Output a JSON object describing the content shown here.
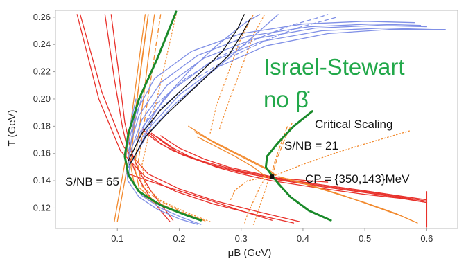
{
  "chart_data": {
    "type": "line",
    "xlabel": "μB (GeV)",
    "ylabel": "T (GeV)",
    "xlim": [
      0.0,
      0.65
    ],
    "ylim": [
      0.105,
      0.265
    ],
    "x_ticks": [
      "0.1",
      "0.2",
      "0.3",
      "0.4",
      "0.5",
      "0.6"
    ],
    "y_ticks": [
      "0.12",
      "0.14",
      "0.16",
      "0.18",
      "0.20",
      "0.22",
      "0.24",
      "0.26"
    ],
    "grid": false,
    "annotations": {
      "title_line1": "Israel-Stewart",
      "title_line2": "no β̇",
      "critical_scaling": "Critical Scaling",
      "sb_21": "S/NB = 21",
      "sb_65": "S/NB = 65",
      "cp": "CP = {350,143}MeV"
    },
    "critical_point": {
      "x": 0.35,
      "y": 0.143
    },
    "colors": {
      "red": "#e8302a",
      "orange": "#f28a2e",
      "blue": "#7f8fe6",
      "black": "#111111",
      "green": "#1a8a2a",
      "title": "#22a84a"
    },
    "series": [
      {
        "color": "red",
        "dash": "solid",
        "x": [
          0.04,
          0.075,
          0.11,
          0.15,
          0.2,
          0.26,
          0.33,
          0.395
        ],
        "y": [
          0.262,
          0.205,
          0.165,
          0.145,
          0.134,
          0.125,
          0.117,
          0.11
        ]
      },
      {
        "color": "red",
        "dash": "solid",
        "x": [
          0.035,
          0.07,
          0.105,
          0.145,
          0.195,
          0.255,
          0.325,
          0.385
        ],
        "y": [
          0.262,
          0.2,
          0.162,
          0.143,
          0.132,
          0.123,
          0.115,
          0.109
        ]
      },
      {
        "color": "red",
        "dash": "solid",
        "x": [
          0.08,
          0.095,
          0.108,
          0.118,
          0.13,
          0.15,
          0.17,
          0.185
        ],
        "y": [
          0.262,
          0.215,
          0.18,
          0.16,
          0.145,
          0.13,
          0.118,
          0.11
        ]
      },
      {
        "color": "red",
        "dash": "solid",
        "x": [
          0.09,
          0.102,
          0.112,
          0.122,
          0.135,
          0.155,
          0.175,
          0.19
        ],
        "y": [
          0.262,
          0.22,
          0.183,
          0.162,
          0.147,
          0.132,
          0.12,
          0.111
        ]
      },
      {
        "color": "red",
        "dash": "solid",
        "x": [
          0.155,
          0.175,
          0.2,
          0.25,
          0.3,
          0.35,
          0.42,
          0.5,
          0.56,
          0.6
        ],
        "y": [
          0.175,
          0.168,
          0.16,
          0.152,
          0.146,
          0.142,
          0.137,
          0.132,
          0.128,
          0.125
        ]
      },
      {
        "color": "red",
        "dash": "solid",
        "x": [
          0.14,
          0.16,
          0.19,
          0.24,
          0.29,
          0.345,
          0.415,
          0.495,
          0.555,
          0.6
        ],
        "y": [
          0.178,
          0.17,
          0.162,
          0.154,
          0.148,
          0.143,
          0.138,
          0.133,
          0.129,
          0.126
        ]
      },
      {
        "color": "red",
        "dash": "solid",
        "x": [
          0.165,
          0.19,
          0.22,
          0.26,
          0.3,
          0.35,
          0.42,
          0.5,
          0.56,
          0.6
        ],
        "y": [
          0.172,
          0.164,
          0.157,
          0.15,
          0.145,
          0.14,
          0.135,
          0.13,
          0.127,
          0.124
        ]
      },
      {
        "color": "red",
        "dash": "solid",
        "x": [
          0.15,
          0.17,
          0.205,
          0.255,
          0.305,
          0.355,
          0.425,
          0.505,
          0.565,
          0.6
        ],
        "y": [
          0.176,
          0.167,
          0.159,
          0.151,
          0.146,
          0.141,
          0.136,
          0.131,
          0.127,
          0.124
        ]
      },
      {
        "color": "red",
        "dash": "solid",
        "x": [
          0.6,
          0.6
        ],
        "y": [
          0.106,
          0.132
        ]
      },
      {
        "color": "red",
        "dash": "solid",
        "x": [
          0.17,
          0.2,
          0.24,
          0.28,
          0.32,
          0.36,
          0.41,
          0.44
        ],
        "y": [
          0.173,
          0.164,
          0.156,
          0.15,
          0.146,
          0.142,
          0.14,
          0.139
        ]
      },
      {
        "color": "red",
        "dash": "solid",
        "x": [
          0.118,
          0.15,
          0.19,
          0.24,
          0.3,
          0.35
        ],
        "y": [
          0.145,
          0.14,
          0.134,
          0.127,
          0.118,
          0.111
        ]
      },
      {
        "color": "orange",
        "dash": "solid",
        "x": [
          0.16,
          0.15,
          0.142,
          0.133,
          0.128,
          0.135,
          0.16,
          0.2,
          0.24
        ],
        "y": [
          0.262,
          0.23,
          0.2,
          0.17,
          0.15,
          0.135,
          0.125,
          0.117,
          0.111
        ]
      },
      {
        "color": "orange",
        "dash": "solid",
        "x": [
          0.15,
          0.14,
          0.132,
          0.125,
          0.122,
          0.128,
          0.15,
          0.19,
          0.23
        ],
        "y": [
          0.262,
          0.23,
          0.2,
          0.17,
          0.15,
          0.136,
          0.126,
          0.118,
          0.112
        ]
      },
      {
        "color": "orange",
        "dash": "dashed",
        "x": [
          0.17,
          0.16,
          0.15,
          0.14,
          0.133,
          0.14,
          0.165,
          0.205,
          0.245
        ],
        "y": [
          0.262,
          0.232,
          0.202,
          0.172,
          0.152,
          0.136,
          0.126,
          0.117,
          0.11
        ]
      },
      {
        "color": "orange",
        "dash": "dotted",
        "x": [
          0.195,
          0.18,
          0.165,
          0.15,
          0.14,
          0.145,
          0.168,
          0.21,
          0.25
        ],
        "y": [
          0.262,
          0.232,
          0.202,
          0.172,
          0.152,
          0.137,
          0.126,
          0.117,
          0.11
        ]
      },
      {
        "color": "orange",
        "dash": "solid",
        "x": [
          0.15,
          0.12,
          0.1
        ],
        "y": [
          0.262,
          0.16,
          0.11
        ]
      },
      {
        "color": "orange",
        "dash": "solid",
        "x": [
          0.145,
          0.115,
          0.095
        ],
        "y": [
          0.262,
          0.16,
          0.11
        ]
      },
      {
        "color": "orange",
        "dash": "solid",
        "x": [
          0.215,
          0.25,
          0.285,
          0.32,
          0.345,
          0.355
        ],
        "y": [
          0.18,
          0.17,
          0.162,
          0.154,
          0.148,
          0.144
        ]
      },
      {
        "color": "orange",
        "dash": "solid",
        "x": [
          0.225,
          0.26,
          0.295,
          0.325,
          0.348,
          0.356
        ],
        "y": [
          0.176,
          0.167,
          0.159,
          0.152,
          0.147,
          0.144
        ]
      },
      {
        "color": "orange",
        "dash": "solid",
        "x": [
          0.36,
          0.4,
          0.45,
          0.5,
          0.55,
          0.58
        ],
        "y": [
          0.143,
          0.138,
          0.131,
          0.124,
          0.116,
          0.11
        ]
      },
      {
        "color": "orange",
        "dash": "solid",
        "x": [
          0.362,
          0.41,
          0.46,
          0.51,
          0.56,
          0.585
        ],
        "y": [
          0.143,
          0.137,
          0.13,
          0.122,
          0.114,
          0.109
        ]
      },
      {
        "color": "orange",
        "dash": "dotted",
        "x": [
          0.34,
          0.33,
          0.32,
          0.31,
          0.305
        ],
        "y": [
          0.143,
          0.135,
          0.125,
          0.115,
          0.108
        ]
      },
      {
        "color": "orange",
        "dash": "dotted",
        "x": [
          0.345,
          0.34,
          0.332,
          0.325,
          0.32
        ],
        "y": [
          0.143,
          0.134,
          0.124,
          0.114,
          0.108
        ]
      },
      {
        "color": "orange",
        "dash": "dotted",
        "x": [
          0.345,
          0.31,
          0.29,
          0.283
        ],
        "y": [
          0.143,
          0.14,
          0.133,
          0.126
        ]
      },
      {
        "color": "orange",
        "dash": "dotted",
        "x": [
          0.355,
          0.4,
          0.45,
          0.5,
          0.545,
          0.575
        ],
        "y": [
          0.144,
          0.152,
          0.16,
          0.167,
          0.173,
          0.177
        ]
      },
      {
        "color": "orange",
        "dash": "dashed",
        "x": [
          0.348,
          0.355,
          0.365,
          0.375
        ],
        "y": [
          0.143,
          0.155,
          0.168,
          0.18
        ]
      },
      {
        "color": "orange",
        "dash": "dashed",
        "x": [
          0.35,
          0.358,
          0.37,
          0.382
        ],
        "y": [
          0.143,
          0.156,
          0.17,
          0.182
        ]
      },
      {
        "color": "orange",
        "dash": "solid",
        "x": [
          0.34,
          0.32,
          0.29,
          0.26,
          0.23
        ],
        "y": [
          0.143,
          0.15,
          0.158,
          0.165,
          0.172
        ]
      },
      {
        "color": "orange",
        "dash": "dotted",
        "x": [
          0.25,
          0.26,
          0.28,
          0.3,
          0.32
        ],
        "y": [
          0.175,
          0.195,
          0.22,
          0.245,
          0.262
        ]
      },
      {
        "color": "orange",
        "dash": "dotted",
        "x": [
          0.265,
          0.28,
          0.3,
          0.32,
          0.338
        ],
        "y": [
          0.178,
          0.198,
          0.222,
          0.247,
          0.262
        ]
      },
      {
        "color": "blue",
        "dash": "solid",
        "x": [
          0.12,
          0.14,
          0.18,
          0.24,
          0.32,
          0.42,
          0.52,
          0.6
        ],
        "y": [
          0.16,
          0.185,
          0.21,
          0.23,
          0.244,
          0.252,
          0.254,
          0.253
        ]
      },
      {
        "color": "blue",
        "dash": "solid",
        "x": [
          0.118,
          0.135,
          0.17,
          0.23,
          0.31,
          0.41,
          0.51,
          0.59
        ],
        "y": [
          0.162,
          0.188,
          0.212,
          0.232,
          0.246,
          0.253,
          0.255,
          0.254
        ]
      },
      {
        "color": "blue",
        "dash": "solid",
        "x": [
          0.122,
          0.145,
          0.19,
          0.25,
          0.33,
          0.43,
          0.53,
          0.61
        ],
        "y": [
          0.158,
          0.182,
          0.207,
          0.227,
          0.242,
          0.25,
          0.252,
          0.251
        ]
      },
      {
        "color": "blue",
        "dash": "solid",
        "x": [
          0.125,
          0.15,
          0.2,
          0.26,
          0.34,
          0.44,
          0.54,
          0.63
        ],
        "y": [
          0.155,
          0.178,
          0.203,
          0.223,
          0.239,
          0.248,
          0.251,
          0.251
        ]
      },
      {
        "color": "blue",
        "dash": "solid",
        "x": [
          0.116,
          0.13,
          0.16,
          0.22,
          0.3,
          0.4,
          0.5,
          0.58
        ],
        "y": [
          0.164,
          0.19,
          0.215,
          0.235,
          0.248,
          0.255,
          0.257,
          0.256
        ]
      },
      {
        "color": "blue",
        "dash": "dashed",
        "x": [
          0.13,
          0.16,
          0.21,
          0.27,
          0.33,
          0.38,
          0.42,
          0.44
        ],
        "y": [
          0.17,
          0.195,
          0.215,
          0.232,
          0.245,
          0.254,
          0.259,
          0.262
        ]
      },
      {
        "color": "blue",
        "dash": "dashed",
        "x": [
          0.135,
          0.17,
          0.22,
          0.28,
          0.34,
          0.39,
          0.43,
          0.455
        ],
        "y": [
          0.168,
          0.193,
          0.213,
          0.23,
          0.243,
          0.252,
          0.257,
          0.26
        ]
      },
      {
        "color": "blue",
        "dash": "solid",
        "x": [
          0.14,
          0.175,
          0.215,
          0.255,
          0.29,
          0.31,
          0.33
        ],
        "y": [
          0.175,
          0.2,
          0.22,
          0.237,
          0.25,
          0.257,
          0.262
        ]
      },
      {
        "color": "blue",
        "dash": "solid",
        "x": [
          0.118,
          0.15,
          0.19,
          0.24,
          0.28,
          0.33,
          0.36
        ],
        "y": [
          0.15,
          0.175,
          0.195,
          0.215,
          0.23,
          0.25,
          0.262
        ]
      },
      {
        "color": "blue",
        "dash": "solid",
        "x": [
          0.13,
          0.118,
          0.113,
          0.117,
          0.135,
          0.165,
          0.2,
          0.23
        ],
        "y": [
          0.2,
          0.175,
          0.155,
          0.14,
          0.128,
          0.119,
          0.112,
          0.108
        ]
      },
      {
        "color": "blue",
        "dash": "solid",
        "x": [
          0.14,
          0.125,
          0.118,
          0.121,
          0.14,
          0.17,
          0.205,
          0.235
        ],
        "y": [
          0.202,
          0.177,
          0.157,
          0.141,
          0.129,
          0.12,
          0.113,
          0.108
        ]
      },
      {
        "color": "black",
        "dash": "solid",
        "x": [
          0.118,
          0.14,
          0.17,
          0.205,
          0.24,
          0.27,
          0.295,
          0.305
        ],
        "y": [
          0.155,
          0.175,
          0.192,
          0.207,
          0.222,
          0.235,
          0.252,
          0.262
        ]
      },
      {
        "color": "black",
        "dash": "solid",
        "x": [
          0.12,
          0.145,
          0.18,
          0.215,
          0.25,
          0.28,
          0.303,
          0.315
        ],
        "y": [
          0.152,
          0.172,
          0.189,
          0.204,
          0.219,
          0.232,
          0.249,
          0.259
        ]
      },
      {
        "color": "green",
        "dash": "solid",
        "width": 3,
        "x": [
          0.195,
          0.165,
          0.135,
          0.118,
          0.112,
          0.118,
          0.135,
          0.17,
          0.21,
          0.235
        ],
        "y": [
          0.264,
          0.23,
          0.2,
          0.175,
          0.158,
          0.144,
          0.132,
          0.122,
          0.115,
          0.111
        ]
      },
      {
        "color": "green",
        "dash": "solid",
        "width": 3,
        "x": [
          0.415,
          0.385,
          0.36,
          0.342,
          0.34,
          0.348,
          0.36,
          0.38,
          0.41,
          0.445
        ],
        "y": [
          0.191,
          0.18,
          0.168,
          0.158,
          0.15,
          0.145,
          0.138,
          0.128,
          0.118,
          0.111
        ]
      }
    ]
  }
}
